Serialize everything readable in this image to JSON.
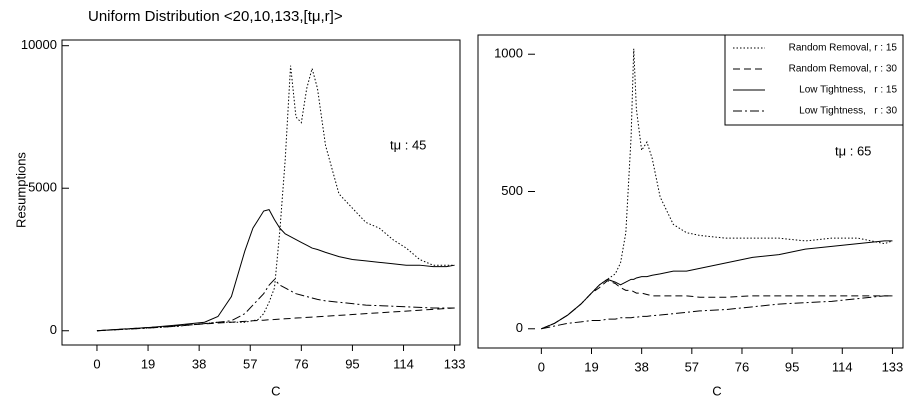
{
  "chart_data": [
    {
      "type": "line",
      "title": "Uniform Distribution <20,10,133,[tμ,r]>",
      "xlabel": "C",
      "ylabel": "Resumptions",
      "annotation": "tμ : 45",
      "x": [
        0,
        10,
        20,
        30,
        40,
        45,
        50,
        55,
        58,
        60,
        62,
        64,
        66,
        68,
        70,
        72,
        74,
        76,
        78,
        80,
        82,
        85,
        90,
        95,
        100,
        105,
        110,
        115,
        120,
        125,
        130,
        133
      ],
      "xlim": [
        -13,
        135
      ],
      "xticks": [
        0,
        19,
        38,
        57,
        76,
        95,
        114,
        133
      ],
      "ylim": [
        -500,
        10200
      ],
      "yticks": [
        0,
        5000,
        10000
      ],
      "series": [
        {
          "color": "#000000",
          "dash": "dotted",
          "values": [
            0,
            50,
            100,
            160,
            250,
            300,
            300,
            300,
            350,
            400,
            600,
            1000,
            1500,
            3500,
            6000,
            9300,
            7500,
            7300,
            8500,
            9200,
            8500,
            6500,
            4800,
            4300,
            3800,
            3600,
            3200,
            2900,
            2500,
            2300,
            2300,
            2300
          ]
        },
        {
          "color": "#000000",
          "dash": "dashed",
          "values": [
            0,
            60,
            120,
            180,
            240,
            270,
            300,
            330,
            350,
            360,
            370,
            385,
            395,
            410,
            420,
            430,
            445,
            455,
            470,
            480,
            490,
            510,
            540,
            570,
            600,
            630,
            660,
            690,
            720,
            750,
            780,
            800
          ]
        },
        {
          "color": "#000000",
          "dash": "solid",
          "values": [
            0,
            60,
            120,
            200,
            300,
            500,
            1200,
            2800,
            3600,
            3900,
            4200,
            4250,
            3900,
            3600,
            3400,
            3300,
            3200,
            3100,
            3000,
            2900,
            2850,
            2750,
            2600,
            2500,
            2450,
            2400,
            2350,
            2300,
            2300,
            2250,
            2250,
            2300
          ]
        },
        {
          "color": "#000000",
          "dash": "dashdot",
          "values": [
            0,
            50,
            100,
            160,
            250,
            300,
            350,
            600,
            900,
            1100,
            1300,
            1600,
            1800,
            1600,
            1500,
            1400,
            1300,
            1250,
            1200,
            1150,
            1100,
            1050,
            1000,
            950,
            900,
            880,
            860,
            840,
            820,
            800,
            800,
            800
          ]
        }
      ]
    },
    {
      "type": "line",
      "xlabel": "C",
      "annotation": "tμ : 65",
      "legend": "upper right",
      "x": [
        0,
        5,
        10,
        15,
        19,
        22,
        25,
        28,
        30,
        32,
        34,
        35,
        36,
        38,
        40,
        42,
        45,
        50,
        55,
        60,
        70,
        80,
        90,
        100,
        110,
        120,
        130,
        133
      ],
      "xlim": [
        -24,
        137
      ],
      "xticks": [
        0,
        19,
        38,
        57,
        76,
        95,
        114,
        133
      ],
      "ylim": [
        -70,
        1070
      ],
      "yticks": [
        0,
        500,
        1000
      ],
      "series": [
        {
          "name": "Random Removal, r : 15",
          "color": "#000000",
          "dash": "dotted",
          "values": [
            0,
            20,
            50,
            90,
            130,
            160,
            180,
            200,
            240,
            350,
            700,
            1020,
            800,
            650,
            680,
            620,
            480,
            380,
            350,
            340,
            330,
            330,
            330,
            320,
            330,
            330,
            310,
            320
          ]
        },
        {
          "name": "Random Removal, r : 30",
          "color": "#000000",
          "dash": "dashed",
          "values": [
            0,
            20,
            50,
            90,
            130,
            150,
            175,
            165,
            150,
            140,
            140,
            135,
            130,
            130,
            125,
            120,
            120,
            120,
            120,
            115,
            115,
            120,
            120,
            120,
            120,
            120,
            120,
            120
          ]
        },
        {
          "name": "Low Tightness,   r : 15",
          "color": "#000000",
          "dash": "solid",
          "values": [
            0,
            20,
            50,
            90,
            130,
            160,
            180,
            170,
            160,
            170,
            180,
            180,
            185,
            190,
            190,
            195,
            200,
            210,
            210,
            220,
            240,
            260,
            270,
            290,
            300,
            310,
            320,
            320
          ]
        },
        {
          "name": "Low Tightness,   r : 30",
          "color": "#000000",
          "dash": "dashdot",
          "values": [
            0,
            10,
            20,
            25,
            30,
            30,
            35,
            35,
            40,
            40,
            40,
            42,
            42,
            45,
            45,
            48,
            50,
            55,
            60,
            65,
            70,
            80,
            90,
            95,
            100,
            110,
            120,
            120
          ]
        }
      ]
    }
  ]
}
